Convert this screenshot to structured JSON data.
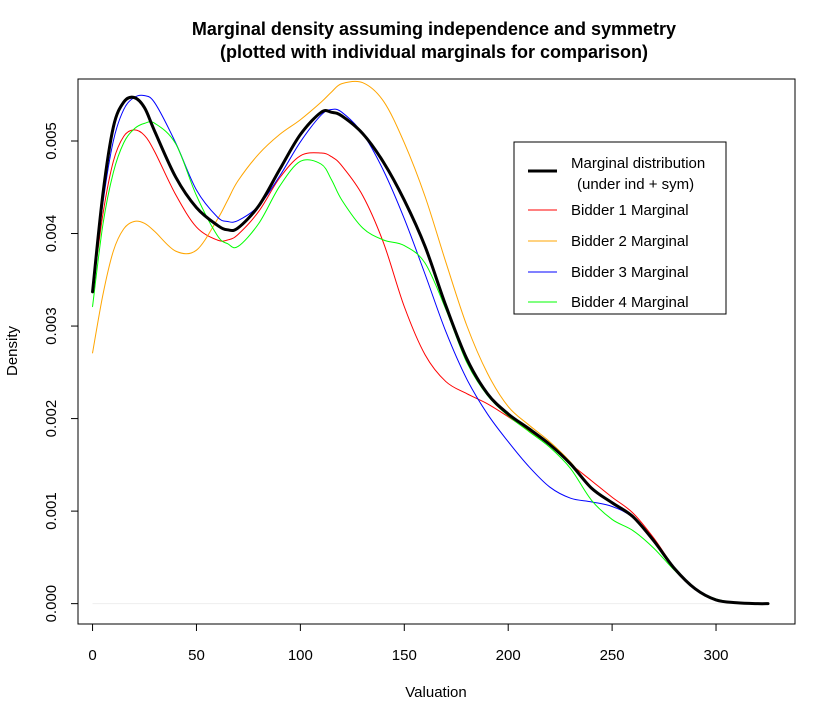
{
  "chart_data": {
    "type": "line",
    "title_line1": "Marginal density assuming independence and symmetry",
    "title_line2": "(plotted with individual marginals for comparison)",
    "xlabel": "Valuation",
    "ylabel": "Density",
    "xlim": [
      -7,
      338
    ],
    "ylim": [
      -0.00022,
      0.00567
    ],
    "xticks": [
      0,
      50,
      100,
      150,
      200,
      250,
      300
    ],
    "xtick_labels": [
      "0",
      "50",
      "100",
      "150",
      "200",
      "250",
      "300"
    ],
    "yticks": [
      0.0,
      0.001,
      0.002,
      0.003,
      0.004,
      0.005
    ],
    "ytick_labels": [
      "0.000",
      "0.001",
      "0.002",
      "0.003",
      "0.004",
      "0.005"
    ],
    "grid": false,
    "zero_line": true,
    "legend_position": "top-right",
    "legend": {
      "entries": [
        {
          "label_line1": "Marginal distribution",
          "label_line2": "(under ind + sym)",
          "color": "#000000",
          "width": 3
        },
        {
          "label_line1": "Bidder 1 Marginal",
          "label_line2": "",
          "color": "#ff0000",
          "width": 1
        },
        {
          "label_line1": "Bidder 2 Marginal",
          "label_line2": "",
          "color": "#ffa500",
          "width": 1
        },
        {
          "label_line1": "Bidder 3 Marginal",
          "label_line2": "",
          "color": "#0000ff",
          "width": 1
        },
        {
          "label_line1": "Bidder 4 Marginal",
          "label_line2": "",
          "color": "#00ff00",
          "width": 1
        }
      ]
    },
    "series": [
      {
        "name": "Marginal distribution (under ind + sym)",
        "color": "#000000",
        "width": 3,
        "x": [
          0,
          5,
          10,
          15,
          20,
          25,
          30,
          40,
          50,
          60,
          65,
          70,
          80,
          90,
          100,
          110,
          115,
          120,
          130,
          140,
          150,
          160,
          170,
          180,
          190,
          200,
          210,
          220,
          230,
          240,
          250,
          260,
          270,
          280,
          290,
          300,
          310,
          320,
          325
        ],
        "y": [
          0.00337,
          0.00443,
          0.00515,
          0.00542,
          0.00547,
          0.00536,
          0.0051,
          0.00461,
          0.00428,
          0.00409,
          0.00404,
          0.00406,
          0.0043,
          0.00469,
          0.00507,
          0.00531,
          0.00531,
          0.00527,
          0.00508,
          0.00477,
          0.00436,
          0.00386,
          0.00322,
          0.00265,
          0.00227,
          0.00205,
          0.00189,
          0.00172,
          0.00151,
          0.00125,
          0.00109,
          0.00094,
          0.00068,
          0.00038,
          0.00016,
          4e-05,
          1e-05,
          0.0,
          0.0
        ]
      },
      {
        "name": "Bidder 1 Marginal",
        "color": "#ff0000",
        "width": 1,
        "x": [
          0,
          5,
          10,
          15,
          20,
          25,
          30,
          40,
          50,
          60,
          65,
          70,
          80,
          90,
          100,
          110,
          115,
          120,
          130,
          140,
          150,
          160,
          170,
          180,
          190,
          200,
          210,
          220,
          230,
          240,
          250,
          260,
          270,
          280,
          290,
          300,
          310,
          320,
          325
        ],
        "y": [
          0.00337,
          0.00421,
          0.00478,
          0.00505,
          0.00512,
          0.00506,
          0.00488,
          0.00442,
          0.00407,
          0.00393,
          0.00393,
          0.00399,
          0.00424,
          0.0046,
          0.00484,
          0.00487,
          0.00483,
          0.00473,
          0.00441,
          0.0039,
          0.00321,
          0.00269,
          0.0024,
          0.00227,
          0.00216,
          0.00202,
          0.00187,
          0.00171,
          0.00151,
          0.00133,
          0.00115,
          0.00098,
          0.00071,
          0.00039,
          0.00016,
          4e-05,
          1e-05,
          0.0,
          0.0
        ]
      },
      {
        "name": "Bidder 2 Marginal",
        "color": "#ffa500",
        "width": 1,
        "x": [
          0,
          5,
          10,
          15,
          20,
          25,
          30,
          40,
          50,
          60,
          65,
          70,
          80,
          90,
          100,
          110,
          115,
          120,
          130,
          140,
          150,
          160,
          170,
          180,
          190,
          200,
          210,
          220,
          230,
          240,
          250,
          260,
          270,
          280,
          290,
          300,
          310,
          320,
          325
        ],
        "y": [
          0.00271,
          0.00334,
          0.00381,
          0.00405,
          0.00413,
          0.00411,
          0.00402,
          0.00381,
          0.00382,
          0.00415,
          0.00436,
          0.00457,
          0.00486,
          0.00507,
          0.00523,
          0.00542,
          0.00553,
          0.00562,
          0.00563,
          0.00543,
          0.00498,
          0.0044,
          0.00369,
          0.00301,
          0.00249,
          0.00213,
          0.00193,
          0.00175,
          0.00153,
          0.00126,
          0.00109,
          0.00093,
          0.00067,
          0.00038,
          0.00016,
          4e-05,
          1e-05,
          0.0,
          0.0
        ]
      },
      {
        "name": "Bidder 3 Marginal",
        "color": "#0000ff",
        "width": 1,
        "x": [
          0,
          5,
          10,
          15,
          20,
          25,
          30,
          40,
          50,
          60,
          65,
          70,
          80,
          90,
          100,
          110,
          115,
          120,
          130,
          140,
          150,
          160,
          170,
          180,
          190,
          200,
          210,
          220,
          230,
          240,
          250,
          260,
          270,
          280,
          290,
          300,
          310,
          320,
          325
        ],
        "y": [
          0.00337,
          0.00433,
          0.005,
          0.00534,
          0.00547,
          0.00549,
          0.00541,
          0.00498,
          0.00447,
          0.00418,
          0.00413,
          0.00414,
          0.0043,
          0.00462,
          0.00499,
          0.00528,
          0.00534,
          0.00531,
          0.00508,
          0.00468,
          0.00416,
          0.00356,
          0.00294,
          0.00243,
          0.00205,
          0.00175,
          0.00148,
          0.00126,
          0.00114,
          0.0011,
          0.00105,
          0.00093,
          0.00067,
          0.00037,
          0.00015,
          4e-05,
          1e-05,
          0.0,
          0.0
        ]
      },
      {
        "name": "Bidder 4 Marginal",
        "color": "#00ff00",
        "width": 1,
        "x": [
          0,
          5,
          10,
          15,
          20,
          25,
          30,
          40,
          50,
          60,
          65,
          70,
          80,
          90,
          100,
          110,
          115,
          120,
          130,
          140,
          150,
          160,
          170,
          180,
          190,
          200,
          210,
          220,
          230,
          240,
          250,
          260,
          270,
          280,
          290,
          300,
          310,
          320,
          325
        ],
        "y": [
          0.00321,
          0.0041,
          0.00466,
          0.00498,
          0.00513,
          0.00519,
          0.00519,
          0.00497,
          0.00441,
          0.00398,
          0.00389,
          0.00386,
          0.00411,
          0.00451,
          0.00478,
          0.00475,
          0.00458,
          0.00436,
          0.00406,
          0.00393,
          0.00387,
          0.00368,
          0.00318,
          0.00261,
          0.00225,
          0.00203,
          0.00186,
          0.00169,
          0.00146,
          0.00112,
          0.00091,
          0.00079,
          0.0006,
          0.00036,
          0.00016,
          5e-05,
          1e-05,
          0.0,
          0.0
        ]
      }
    ]
  }
}
